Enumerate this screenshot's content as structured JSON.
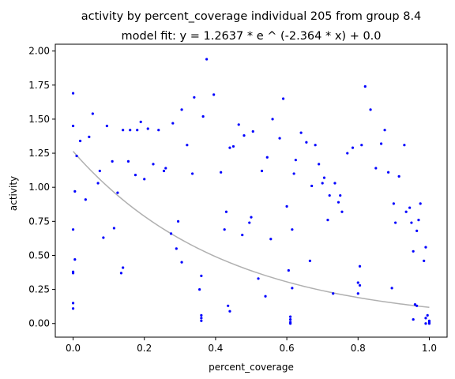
{
  "chart_data": {
    "type": "scatter",
    "title": "activity by percent_coverage individual 205 from group 8.4",
    "subtitle": "model fit: y = 1.2637 * e ^ (-2.364 * x) + 0.0",
    "xlabel": "percent_coverage",
    "ylabel": "activity",
    "xlim": [
      -0.05,
      1.05
    ],
    "ylim": [
      -0.1,
      2.05
    ],
    "xticks": [
      0.0,
      0.2,
      0.4,
      0.6,
      0.8,
      1.0
    ],
    "xtick_labels": [
      "0.0",
      "0.2",
      "0.4",
      "0.6",
      "0.8",
      "1.0"
    ],
    "yticks": [
      0.0,
      0.25,
      0.5,
      0.75,
      1.0,
      1.25,
      1.5,
      1.75,
      2.0
    ],
    "ytick_labels": [
      "0.00",
      "0.25",
      "0.50",
      "0.75",
      "1.00",
      "1.25",
      "1.50",
      "1.75",
      "2.00"
    ],
    "grid": false,
    "point_color": "#0000ff",
    "fit_color": "#b0b0b0",
    "fit": {
      "a": 1.2637,
      "b": -2.364,
      "c": 0.0
    },
    "points": [
      [
        0.0,
        1.69
      ],
      [
        0.0,
        1.45
      ],
      [
        0.0,
        0.69
      ],
      [
        0.0,
        0.38
      ],
      [
        0.0,
        0.37
      ],
      [
        0.0,
        0.15
      ],
      [
        0.0,
        0.11
      ],
      [
        0.005,
        0.97
      ],
      [
        0.005,
        0.47
      ],
      [
        0.01,
        1.23
      ],
      [
        0.02,
        1.34
      ],
      [
        0.035,
        0.91
      ],
      [
        0.045,
        1.37
      ],
      [
        0.055,
        1.54
      ],
      [
        0.07,
        1.03
      ],
      [
        0.075,
        1.12
      ],
      [
        0.085,
        0.63
      ],
      [
        0.095,
        1.45
      ],
      [
        0.11,
        1.19
      ],
      [
        0.115,
        0.7
      ],
      [
        0.125,
        0.96
      ],
      [
        0.135,
        0.37
      ],
      [
        0.14,
        0.41
      ],
      [
        0.14,
        1.42
      ],
      [
        0.155,
        1.19
      ],
      [
        0.16,
        1.42
      ],
      [
        0.175,
        1.09
      ],
      [
        0.18,
        1.42
      ],
      [
        0.19,
        1.48
      ],
      [
        0.2,
        1.06
      ],
      [
        0.21,
        1.43
      ],
      [
        0.225,
        1.17
      ],
      [
        0.24,
        1.42
      ],
      [
        0.255,
        1.12
      ],
      [
        0.26,
        1.14
      ],
      [
        0.275,
        0.66
      ],
      [
        0.28,
        1.47
      ],
      [
        0.29,
        0.55
      ],
      [
        0.295,
        0.75
      ],
      [
        0.305,
        0.45
      ],
      [
        0.305,
        1.57
      ],
      [
        0.32,
        1.31
      ],
      [
        0.335,
        1.1
      ],
      [
        0.34,
        1.66
      ],
      [
        0.355,
        0.25
      ],
      [
        0.36,
        0.35
      ],
      [
        0.36,
        0.06
      ],
      [
        0.36,
        0.04
      ],
      [
        0.36,
        0.02
      ],
      [
        0.365,
        1.52
      ],
      [
        0.375,
        1.94
      ],
      [
        0.395,
        1.68
      ],
      [
        0.415,
        1.11
      ],
      [
        0.425,
        0.69
      ],
      [
        0.43,
        0.82
      ],
      [
        0.435,
        0.13
      ],
      [
        0.44,
        0.09
      ],
      [
        0.44,
        1.29
      ],
      [
        0.45,
        1.3
      ],
      [
        0.465,
        1.46
      ],
      [
        0.475,
        0.65
      ],
      [
        0.48,
        1.38
      ],
      [
        0.495,
        0.74
      ],
      [
        0.5,
        0.78
      ],
      [
        0.505,
        1.41
      ],
      [
        0.52,
        0.33
      ],
      [
        0.53,
        1.12
      ],
      [
        0.54,
        0.2
      ],
      [
        0.545,
        1.22
      ],
      [
        0.555,
        0.62
      ],
      [
        0.56,
        1.5
      ],
      [
        0.58,
        1.36
      ],
      [
        0.59,
        1.65
      ],
      [
        0.6,
        0.86
      ],
      [
        0.605,
        0.39
      ],
      [
        0.61,
        0.05
      ],
      [
        0.61,
        0.03
      ],
      [
        0.61,
        0.01
      ],
      [
        0.61,
        0.0
      ],
      [
        0.615,
        0.26
      ],
      [
        0.615,
        0.69
      ],
      [
        0.62,
        1.1
      ],
      [
        0.625,
        1.2
      ],
      [
        0.64,
        1.4
      ],
      [
        0.655,
        1.33
      ],
      [
        0.665,
        0.46
      ],
      [
        0.67,
        1.01
      ],
      [
        0.68,
        1.31
      ],
      [
        0.69,
        1.17
      ],
      [
        0.7,
        1.03
      ],
      [
        0.705,
        1.07
      ],
      [
        0.715,
        0.76
      ],
      [
        0.72,
        0.94
      ],
      [
        0.73,
        0.22
      ],
      [
        0.735,
        1.03
      ],
      [
        0.745,
        0.89
      ],
      [
        0.75,
        0.94
      ],
      [
        0.755,
        0.82
      ],
      [
        0.77,
        1.25
      ],
      [
        0.785,
        1.29
      ],
      [
        0.8,
        0.3
      ],
      [
        0.8,
        0.22
      ],
      [
        0.805,
        0.42
      ],
      [
        0.805,
        0.28
      ],
      [
        0.81,
        1.31
      ],
      [
        0.82,
        1.74
      ],
      [
        0.835,
        1.57
      ],
      [
        0.85,
        1.14
      ],
      [
        0.865,
        1.32
      ],
      [
        0.875,
        1.42
      ],
      [
        0.885,
        1.11
      ],
      [
        0.895,
        0.26
      ],
      [
        0.9,
        0.88
      ],
      [
        0.905,
        0.74
      ],
      [
        0.915,
        1.08
      ],
      [
        0.93,
        1.31
      ],
      [
        0.935,
        0.82
      ],
      [
        0.945,
        0.85
      ],
      [
        0.95,
        0.74
      ],
      [
        0.955,
        0.53
      ],
      [
        0.955,
        0.03
      ],
      [
        0.96,
        0.14
      ],
      [
        0.965,
        0.13
      ],
      [
        0.965,
        0.68
      ],
      [
        0.97,
        0.76
      ],
      [
        0.975,
        0.88
      ],
      [
        0.985,
        0.46
      ],
      [
        0.99,
        0.56
      ],
      [
        0.99,
        0.04
      ],
      [
        0.99,
        0.0
      ],
      [
        1.0,
        0.02
      ],
      [
        1.0,
        0.01
      ],
      [
        1.0,
        0.0
      ],
      [
        0.995,
        0.06
      ]
    ]
  }
}
